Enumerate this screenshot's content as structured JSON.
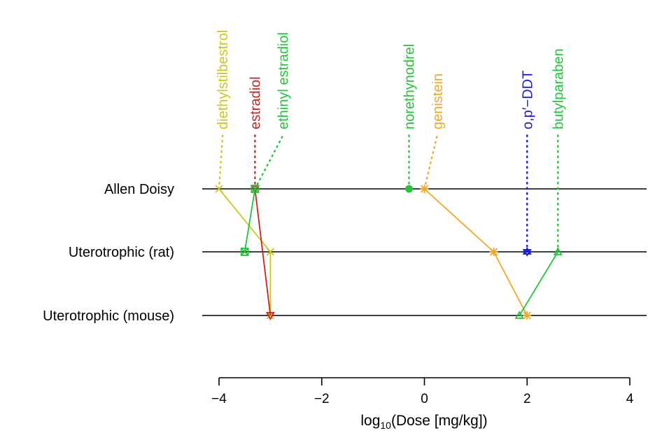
{
  "chart_data": {
    "type": "scatter",
    "title": "",
    "xlabel": "log10(Dose [mg/kg])",
    "xlabel_parts": {
      "base": "log",
      "sub": "10",
      "rest": "(Dose [mg/kg])"
    },
    "ylabel": "",
    "xlim": [
      -4,
      4
    ],
    "x_ticks": [
      -4,
      -2,
      0,
      2,
      4
    ],
    "x_tick_labels": [
      "−4",
      "−2",
      "0",
      "2",
      "4"
    ],
    "categories": [
      "Allen Doisy",
      "Uterotrophic (rat)",
      "Uterotrophic (mouse)"
    ],
    "grid": false,
    "series": [
      {
        "name": "diethylstilbestrol",
        "color": "#c8c81e",
        "marker": "x",
        "x": [
          -4.0,
          -3.0,
          -3.0
        ],
        "y": [
          "Allen Doisy",
          "Uterotrophic (rat)",
          "Uterotrophic (mouse)"
        ]
      },
      {
        "name": "estradiol",
        "color": "#d0201c",
        "marker": "triangle-down",
        "x": [
          -3.3,
          -3.0
        ],
        "y": [
          "Allen Doisy",
          "Uterotrophic (mouse)"
        ]
      },
      {
        "name": "ethinyl estradiol",
        "color": "#22c43a",
        "marker": "square-x",
        "x": [
          -3.3,
          -3.5
        ],
        "y": [
          "Allen Doisy",
          "Uterotrophic (rat)"
        ]
      },
      {
        "name": "norethynodrel",
        "color": "#22c43a",
        "marker": "dot",
        "x": [
          -0.3
        ],
        "y": [
          "Allen Doisy"
        ]
      },
      {
        "name": "genistein",
        "color": "#f5a623",
        "marker": "asterisk",
        "x": [
          0.0,
          1.35,
          2.0
        ],
        "y": [
          "Allen Doisy",
          "Uterotrophic (rat)",
          "Uterotrophic (mouse)"
        ]
      },
      {
        "name": "o,p′−DDT",
        "color": "#1a1ae6",
        "marker": "star",
        "x": [
          2.0
        ],
        "y": [
          "Uterotrophic (rat)"
        ]
      },
      {
        "name": "butylparaben",
        "color": "#22c43a",
        "marker": "triangle-up",
        "x": [
          2.6,
          1.85
        ],
        "y": [
          "Uterotrophic (rat)",
          "Uterotrophic (mouse)"
        ]
      }
    ],
    "top_labels": [
      {
        "text": "diethylstilbestrol",
        "color": "#c8c81e",
        "x": -4.0,
        "label_x": -3.93
      },
      {
        "text": "estradiol",
        "color": "#d0201c",
        "x": -3.3,
        "label_x": -3.3
      },
      {
        "text": "ethinyl estradiol",
        "color": "#22c43a",
        "x": -3.3,
        "label_x": -2.75
      },
      {
        "text": "norethynodrel",
        "color": "#22c43a",
        "x": -0.3,
        "label_x": -0.3
      },
      {
        "text": "genistein",
        "color": "#f5a623",
        "x": 0.0,
        "label_x": 0.25
      },
      {
        "text": "o,p′−DDT",
        "color": "#1a1ae6",
        "x": 2.0,
        "label_x": 2.0
      },
      {
        "text": "butylparaben",
        "color": "#22c43a",
        "x": 2.6,
        "label_x": 2.6
      }
    ]
  }
}
